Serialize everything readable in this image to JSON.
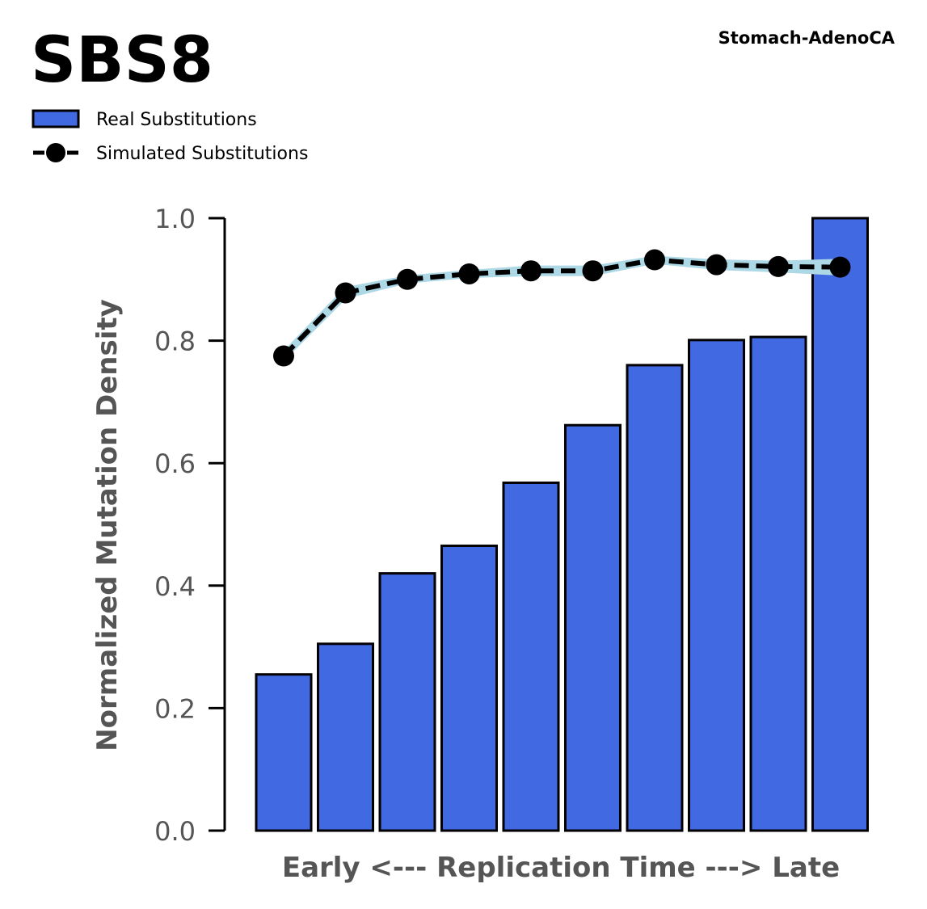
{
  "chart_data": {
    "type": "bar",
    "title": "SBS8",
    "subtitle": "Stomach-AdenoCA",
    "xlabel": "Early <--- Replication Time ---> Late",
    "ylabel": "Normalized Mutation Density",
    "ylim": [
      0,
      1.0
    ],
    "yticks": [
      "0.0",
      "0.2",
      "0.4",
      "0.6",
      "0.8",
      "1.0"
    ],
    "categories": [
      "1",
      "2",
      "3",
      "4",
      "5",
      "6",
      "7",
      "8",
      "9",
      "10"
    ],
    "show_xticks": false,
    "grid": false,
    "legend_placement": "top-left",
    "series": [
      {
        "name": "Real Substitutions",
        "type": "bar",
        "color": "#4169E1",
        "edgecolor": "#000000",
        "values": [
          0.255,
          0.305,
          0.42,
          0.465,
          0.568,
          0.662,
          0.76,
          0.801,
          0.806,
          1.0
        ]
      },
      {
        "name": "Simulated Substitutions",
        "type": "line",
        "color": "#000000",
        "linestyle": "dashed",
        "marker": "circle",
        "band_color": "#ADD8E6",
        "values": [
          0.775,
          0.878,
          0.9,
          0.909,
          0.914,
          0.914,
          0.932,
          0.924,
          0.921,
          0.92
        ],
        "band_upper": [
          0.78,
          0.885,
          0.904,
          0.913,
          0.92,
          0.92,
          0.936,
          0.93,
          0.928,
          0.931
        ],
        "band_lower": [
          0.77,
          0.871,
          0.896,
          0.905,
          0.908,
          0.908,
          0.928,
          0.918,
          0.914,
          0.909
        ]
      }
    ]
  }
}
